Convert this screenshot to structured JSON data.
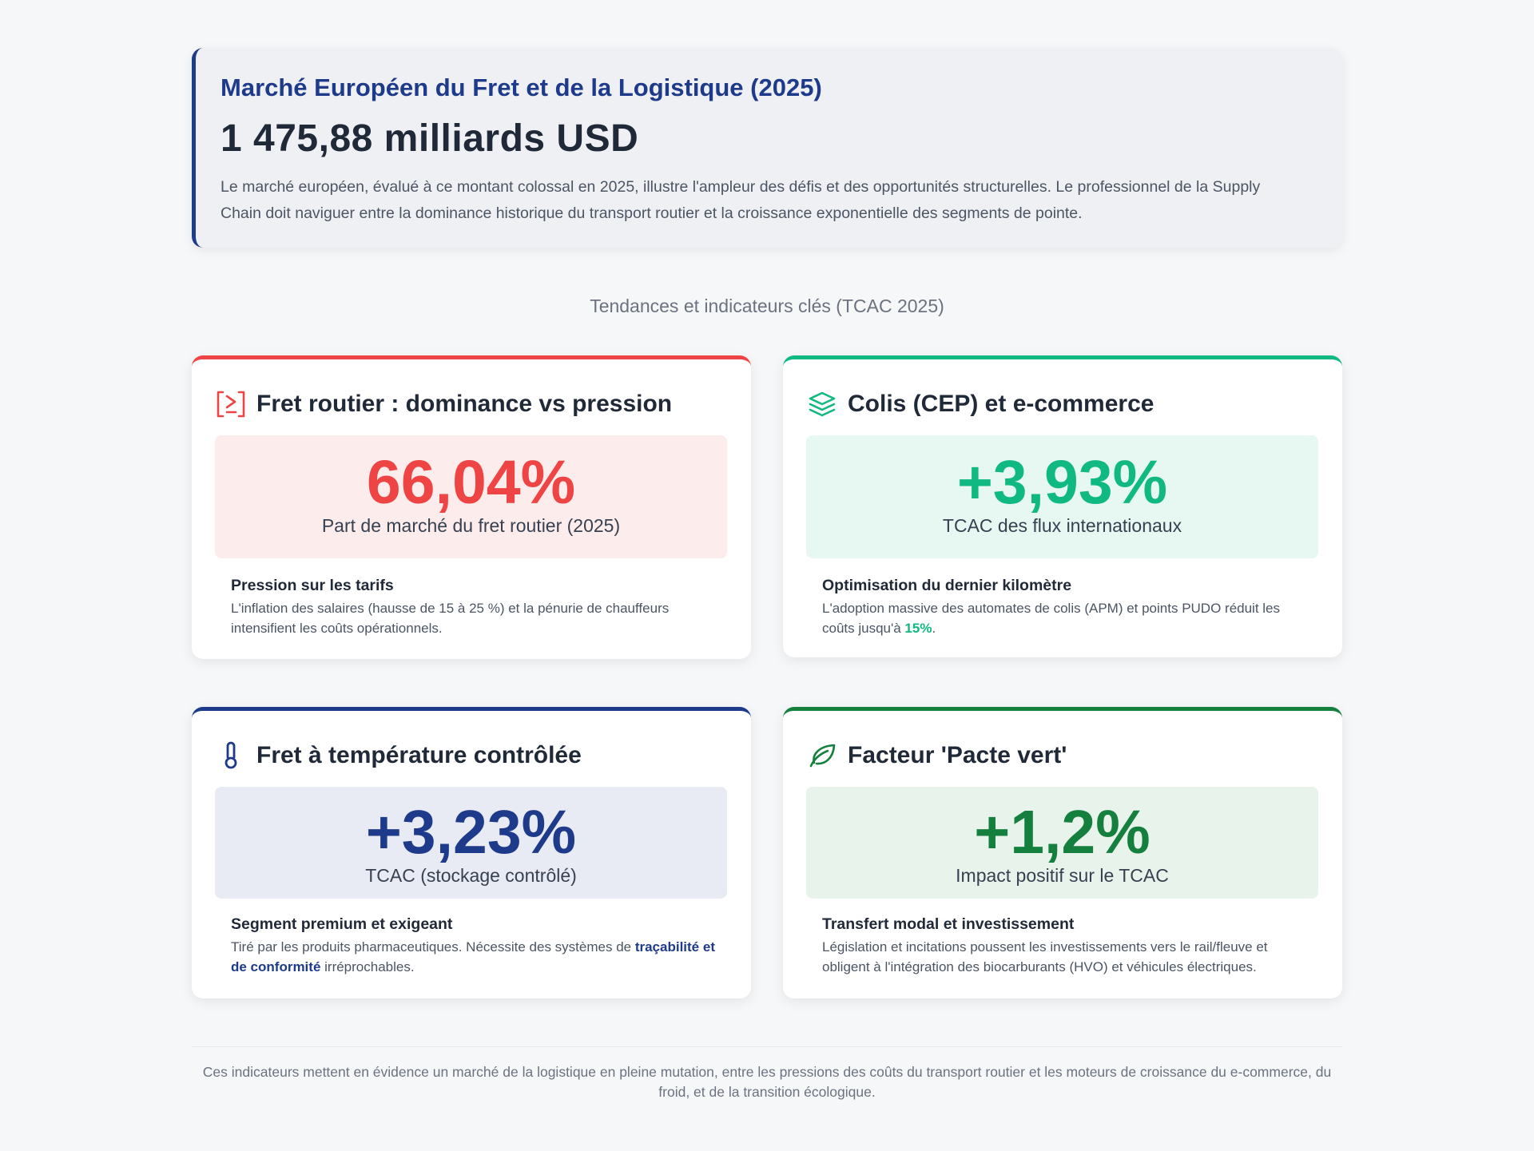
{
  "hero": {
    "title": "Marché Européen du Fret et de la Logistique (2025)",
    "value": "1 475,88 milliards USD",
    "description": "Le marché européen, évalué à ce montant colossal en 2025, illustre l'ampleur des défis et des opportunités structurelles. Le professionnel de la Supply Chain doit naviguer entre la dominance historique du transport routier et la croissance exponentielle des segments de pointe."
  },
  "subtitle": "Tendances et indicateurs clés (TCAC 2025)",
  "colors": {
    "road": "#ef4444",
    "parcels": "#10b981",
    "cold": "#1e3a8a",
    "green": "#15803d"
  },
  "cards": [
    {
      "title": "Fret routier : dominance vs pression",
      "icon": "road-freight-icon",
      "stat_value": "66,04%",
      "stat_label": "Part de marché du fret routier (2025)",
      "detail_title": "Pression sur les tarifs",
      "detail_text": "L'inflation des salaires (hausse de 15 à 25 %) et la pénurie de chauffeurs intensifient les coûts opérationnels."
    },
    {
      "title": "Colis (CEP) et e-commerce",
      "icon": "layers-icon",
      "stat_value": "+3,93%",
      "stat_label": "TCAC des flux internationaux",
      "detail_title": "Optimisation du dernier kilomètre",
      "detail_text_before": "L'adoption massive des automates de colis (APM) et points PUDO réduit les coûts jusqu'à ",
      "detail_highlight": "15%",
      "detail_text_after": "."
    },
    {
      "title": "Fret à température contrôlée",
      "icon": "thermometer-icon",
      "stat_value": "+3,23%",
      "stat_label": "TCAC (stockage contrôlé)",
      "detail_title": "Segment premium et exigeant",
      "detail_text_before": "Tiré par les produits pharmaceutiques. Nécessite des systèmes de ",
      "detail_highlight": "traçabilité et de conformité",
      "detail_text_after": " irréprochables."
    },
    {
      "title": "Facteur 'Pacte vert'",
      "icon": "leaf-icon",
      "stat_value": "+1,2%",
      "stat_label": "Impact positif sur le TCAC",
      "detail_title": "Transfert modal et investissement",
      "detail_text": "Législation et incitations poussent les investissements vers le rail/fleuve et obligent à l'intégration des biocarburants (HVO) et véhicules électriques."
    }
  ],
  "footer": "Ces indicateurs mettent en évidence un marché de la logistique en pleine mutation, entre les pressions des coûts du transport routier et les moteurs de croissance du e-commerce, du froid, et de la transition écologique."
}
